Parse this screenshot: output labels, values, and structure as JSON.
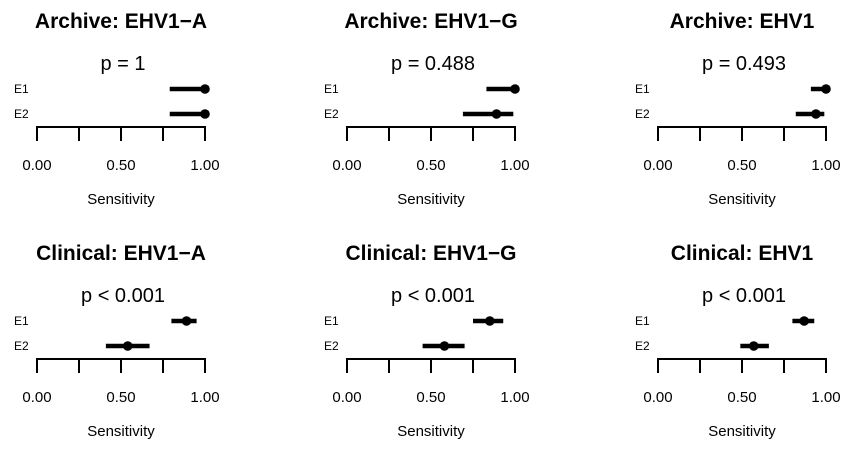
{
  "chart_data": [
    {
      "type": "forest",
      "title": "Archive: EHV1−A",
      "p_label": "p = 1",
      "xlabel": "Sensitivity",
      "xlim": [
        0,
        1
      ],
      "xticks": [
        0,
        0.25,
        0.5,
        0.75,
        1
      ],
      "xtick_labels": [
        "0.00",
        "",
        "0.50",
        "",
        "1.00"
      ],
      "rows": [
        {
          "label": "E1",
          "estimate": 1.0,
          "lower": 0.79,
          "upper": 1.0
        },
        {
          "label": "E2",
          "estimate": 1.0,
          "lower": 0.79,
          "upper": 1.0
        }
      ]
    },
    {
      "type": "forest",
      "title": "Archive: EHV1−G",
      "p_label": "p = 0.488",
      "xlabel": "Sensitivity",
      "xlim": [
        0,
        1
      ],
      "xticks": [
        0,
        0.25,
        0.5,
        0.75,
        1
      ],
      "xtick_labels": [
        "0.00",
        "",
        "0.50",
        "",
        "1.00"
      ],
      "rows": [
        {
          "label": "E1",
          "estimate": 1.0,
          "lower": 0.83,
          "upper": 1.0
        },
        {
          "label": "E2",
          "estimate": 0.89,
          "lower": 0.69,
          "upper": 0.99
        }
      ]
    },
    {
      "type": "forest",
      "title": "Archive: EHV1",
      "p_label": "p = 0.493",
      "xlabel": "Sensitivity",
      "xlim": [
        0,
        1
      ],
      "xticks": [
        0,
        0.25,
        0.5,
        0.75,
        1
      ],
      "xtick_labels": [
        "0.00",
        "",
        "0.50",
        "",
        "1.00"
      ],
      "rows": [
        {
          "label": "E1",
          "estimate": 1.0,
          "lower": 0.91,
          "upper": 1.0
        },
        {
          "label": "E2",
          "estimate": 0.94,
          "lower": 0.82,
          "upper": 0.99
        }
      ]
    },
    {
      "type": "forest",
      "title": "Clinical: EHV1−A",
      "p_label": "p < 0.001",
      "xlabel": "Sensitivity",
      "xlim": [
        0,
        1
      ],
      "xticks": [
        0,
        0.25,
        0.5,
        0.75,
        1
      ],
      "xtick_labels": [
        "0.00",
        "",
        "0.50",
        "",
        "1.00"
      ],
      "rows": [
        {
          "label": "E1",
          "estimate": 0.89,
          "lower": 0.8,
          "upper": 0.95
        },
        {
          "label": "E2",
          "estimate": 0.54,
          "lower": 0.41,
          "upper": 0.67
        }
      ]
    },
    {
      "type": "forest",
      "title": "Clinical: EHV1−G",
      "p_label": "p < 0.001",
      "xlabel": "Sensitivity",
      "xlim": [
        0,
        1
      ],
      "xticks": [
        0,
        0.25,
        0.5,
        0.75,
        1
      ],
      "xtick_labels": [
        "0.00",
        "",
        "0.50",
        "",
        "1.00"
      ],
      "rows": [
        {
          "label": "E1",
          "estimate": 0.85,
          "lower": 0.75,
          "upper": 0.93
        },
        {
          "label": "E2",
          "estimate": 0.58,
          "lower": 0.45,
          "upper": 0.7
        }
      ]
    },
    {
      "type": "forest",
      "title": "Clinical: EHV1",
      "p_label": "p < 0.001",
      "xlabel": "Sensitivity",
      "xlim": [
        0,
        1
      ],
      "xticks": [
        0,
        0.25,
        0.5,
        0.75,
        1
      ],
      "xtick_labels": [
        "0.00",
        "",
        "0.50",
        "",
        "1.00"
      ],
      "rows": [
        {
          "label": "E1",
          "estimate": 0.87,
          "lower": 0.8,
          "upper": 0.93
        },
        {
          "label": "E2",
          "estimate": 0.57,
          "lower": 0.49,
          "upper": 0.66
        }
      ]
    }
  ]
}
